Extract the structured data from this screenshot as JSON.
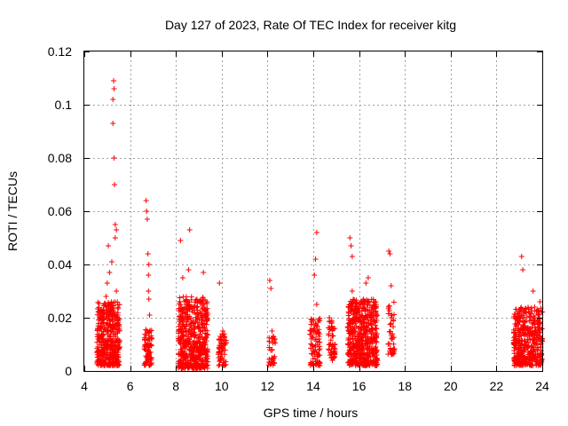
{
  "chart_data": {
    "type": "scatter",
    "title": "Day 127 of 2023, Rate Of TEC Index for receiver kitg",
    "xlabel": "GPS time / hours",
    "ylabel": "ROTI / TECUs",
    "xlim": [
      4,
      24
    ],
    "ylim": [
      0,
      0.12
    ],
    "grid": true,
    "marker": "+",
    "color": "#ff0000",
    "xticks": [
      4,
      6,
      8,
      10,
      12,
      14,
      16,
      18,
      20,
      22,
      24
    ],
    "xtick_labels": [
      "4",
      "6",
      "8",
      "10",
      "12",
      "14",
      "16",
      "18",
      "20",
      "22",
      "24"
    ],
    "yticks": [
      0,
      0.02,
      0.04,
      0.06,
      0.08,
      0.1,
      0.12
    ],
    "ytick_labels": [
      "0",
      "0.02",
      "0.04",
      "0.06",
      "0.08",
      "0.1",
      "0.12"
    ],
    "series": [
      {
        "name": "ROTI",
        "points": [
          [
            4.6,
            0.012
          ],
          [
            4.65,
            0.008
          ],
          [
            4.7,
            0.018
          ],
          [
            4.75,
            0.006
          ],
          [
            4.8,
            0.022
          ],
          [
            4.85,
            0.01
          ],
          [
            4.9,
            0.004
          ],
          [
            4.95,
            0.028
          ],
          [
            5.0,
            0.015
          ],
          [
            5.0,
            0.033
          ],
          [
            5.05,
            0.009
          ],
          [
            5.05,
            0.047
          ],
          [
            5.1,
            0.019
          ],
          [
            5.1,
            0.037
          ],
          [
            5.15,
            0.012
          ],
          [
            5.15,
            0.025
          ],
          [
            5.2,
            0.005
          ],
          [
            5.2,
            0.041
          ],
          [
            5.25,
            0.093
          ],
          [
            5.25,
            0.102
          ],
          [
            5.28,
            0.109
          ],
          [
            5.3,
            0.106
          ],
          [
            5.3,
            0.08
          ],
          [
            5.32,
            0.07
          ],
          [
            5.35,
            0.055
          ],
          [
            5.35,
            0.05
          ],
          [
            5.4,
            0.053
          ],
          [
            5.4,
            0.03
          ],
          [
            5.45,
            0.012
          ],
          [
            5.45,
            0.02
          ],
          [
            5.5,
            0.008
          ],
          [
            5.5,
            0.016
          ],
          [
            6.7,
            0.064
          ],
          [
            6.72,
            0.06
          ],
          [
            6.75,
            0.057
          ],
          [
            6.78,
            0.044
          ],
          [
            6.8,
            0.036
          ],
          [
            6.82,
            0.027
          ],
          [
            6.85,
            0.021
          ],
          [
            6.7,
            0.01
          ],
          [
            6.72,
            0.005
          ],
          [
            6.8,
            0.008
          ],
          [
            6.85,
            0.012
          ],
          [
            6.9,
            0.004
          ],
          [
            6.75,
            0.015
          ],
          [
            6.8,
            0.03
          ],
          [
            6.82,
            0.04
          ],
          [
            8.2,
            0.049
          ],
          [
            8.3,
            0.01
          ],
          [
            8.3,
            0.035
          ],
          [
            8.4,
            0.02
          ],
          [
            8.4,
            0.005
          ],
          [
            8.5,
            0.025
          ],
          [
            8.55,
            0.038
          ],
          [
            8.6,
            0.053
          ],
          [
            8.6,
            0.008
          ],
          [
            8.7,
            0.015
          ],
          [
            8.8,
            0.022
          ],
          [
            8.9,
            0.004
          ],
          [
            9.0,
            0.012
          ],
          [
            9.1,
            0.018
          ],
          [
            9.2,
            0.037
          ],
          [
            9.3,
            0.007
          ],
          [
            9.9,
            0.033
          ],
          [
            9.95,
            0.012
          ],
          [
            10.0,
            0.007
          ],
          [
            10.05,
            0.015
          ],
          [
            10.1,
            0.004
          ],
          [
            10.15,
            0.01
          ],
          [
            12.1,
            0.034
          ],
          [
            12.15,
            0.031
          ],
          [
            12.2,
            0.015
          ],
          [
            12.2,
            0.008
          ],
          [
            12.25,
            0.004
          ],
          [
            12.3,
            0.011
          ],
          [
            13.9,
            0.015
          ],
          [
            14.0,
            0.008
          ],
          [
            14.05,
            0.036
          ],
          [
            14.1,
            0.042
          ],
          [
            14.15,
            0.052
          ],
          [
            14.15,
            0.025
          ],
          [
            14.2,
            0.003
          ],
          [
            14.25,
            0.012
          ],
          [
            14.7,
            0.02
          ],
          [
            14.75,
            0.01
          ],
          [
            14.8,
            0.005
          ],
          [
            14.85,
            0.016
          ],
          [
            15.6,
            0.05
          ],
          [
            15.65,
            0.047
          ],
          [
            15.7,
            0.043
          ],
          [
            15.7,
            0.03
          ],
          [
            15.8,
            0.015
          ],
          [
            15.9,
            0.005
          ],
          [
            16.0,
            0.025
          ],
          [
            16.1,
            0.01
          ],
          [
            16.2,
            0.02
          ],
          [
            16.3,
            0.033
          ],
          [
            16.4,
            0.035
          ],
          [
            16.5,
            0.018
          ],
          [
            16.6,
            0.007
          ],
          [
            16.7,
            0.012
          ],
          [
            17.3,
            0.045
          ],
          [
            17.35,
            0.044
          ],
          [
            17.4,
            0.032
          ],
          [
            17.4,
            0.02
          ],
          [
            17.45,
            0.012
          ],
          [
            17.5,
            0.008
          ],
          [
            22.8,
            0.004
          ],
          [
            22.9,
            0.018
          ],
          [
            23.0,
            0.012
          ],
          [
            23.1,
            0.043
          ],
          [
            23.15,
            0.038
          ],
          [
            23.2,
            0.008
          ],
          [
            23.3,
            0.022
          ],
          [
            23.4,
            0.015
          ],
          [
            23.5,
            0.005
          ],
          [
            23.6,
            0.03
          ],
          [
            23.7,
            0.01
          ],
          [
            23.8,
            0.019
          ],
          [
            23.9,
            0.026
          ],
          [
            24.0,
            0.012
          ]
        ]
      }
    ],
    "clusters": [
      {
        "x_range": [
          4.55,
          5.55
        ],
        "y_range": [
          0.002,
          0.026
        ],
        "count": 420
      },
      {
        "x_range": [
          6.62,
          6.95
        ],
        "y_range": [
          0.002,
          0.016
        ],
        "count": 70
      },
      {
        "x_range": [
          8.1,
          9.4
        ],
        "y_range": [
          0.001,
          0.028
        ],
        "count": 520
      },
      {
        "x_range": [
          9.85,
          10.2
        ],
        "y_range": [
          0.002,
          0.014
        ],
        "count": 60
      },
      {
        "x_range": [
          12.05,
          12.35
        ],
        "y_range": [
          0.002,
          0.013
        ],
        "count": 30
      },
      {
        "x_range": [
          13.85,
          14.3
        ],
        "y_range": [
          0.002,
          0.02
        ],
        "count": 90
      },
      {
        "x_range": [
          14.65,
          14.95
        ],
        "y_range": [
          0.004,
          0.019
        ],
        "count": 50
      },
      {
        "x_range": [
          15.5,
          16.8
        ],
        "y_range": [
          0.002,
          0.027
        ],
        "count": 520
      },
      {
        "x_range": [
          17.25,
          17.55
        ],
        "y_range": [
          0.006,
          0.026
        ],
        "count": 40
      },
      {
        "x_range": [
          22.75,
          24.0
        ],
        "y_range": [
          0.002,
          0.024
        ],
        "count": 430
      }
    ]
  }
}
